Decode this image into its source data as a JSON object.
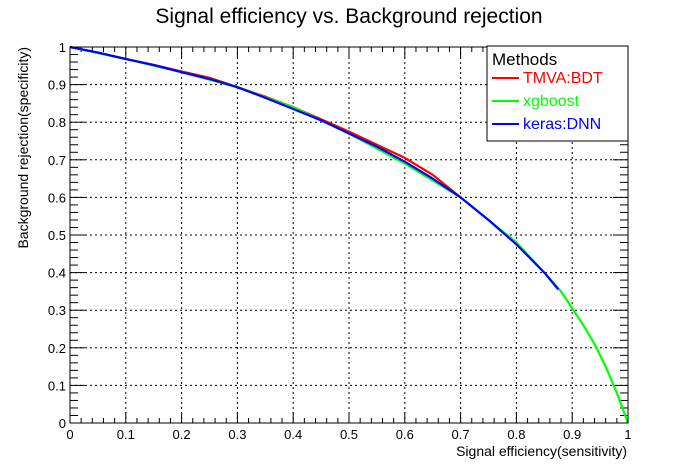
{
  "chart_data": {
    "type": "line",
    "title": "Signal efficiency vs. Background rejection",
    "xlabel": "Signal efficiency(sensitivity)",
    "ylabel": "Background rejection(specificity)",
    "xlim": [
      0,
      1
    ],
    "ylim": [
      0,
      1
    ],
    "xticks": [
      "0",
      "0.1",
      "0.2",
      "0.3",
      "0.4",
      "0.5",
      "0.6",
      "0.7",
      "0.8",
      "0.9",
      "1"
    ],
    "yticks": [
      "0",
      "0.1",
      "0.2",
      "0.3",
      "0.4",
      "0.5",
      "0.6",
      "0.7",
      "0.8",
      "0.9",
      "1"
    ],
    "grid": true,
    "legend": {
      "header": "Methods",
      "placement": "top-right"
    },
    "series": [
      {
        "name": "TMVA:BDT",
        "color": "#ff0000",
        "x": [
          0,
          0.05,
          0.1,
          0.15,
          0.2,
          0.25,
          0.3,
          0.35,
          0.4,
          0.45,
          0.5,
          0.55,
          0.6,
          0.65,
          0.7
        ],
        "y": [
          1.0,
          0.985,
          0.968,
          0.952,
          0.935,
          0.918,
          0.893,
          0.868,
          0.84,
          0.808,
          0.775,
          0.74,
          0.705,
          0.66,
          0.6
        ]
      },
      {
        "name": "xgboost",
        "color": "#00ff00",
        "x": [
          0,
          0.1,
          0.2,
          0.3,
          0.4,
          0.5,
          0.6,
          0.7,
          0.8,
          0.85,
          0.88,
          0.9,
          0.92,
          0.94,
          0.96,
          0.98,
          1.0
        ],
        "y": [
          1.0,
          0.968,
          0.933,
          0.893,
          0.84,
          0.77,
          0.69,
          0.6,
          0.48,
          0.4,
          0.35,
          0.305,
          0.26,
          0.21,
          0.15,
          0.08,
          0.0
        ]
      },
      {
        "name": "keras:DNN",
        "color": "#0000ff",
        "x": [
          0,
          0.05,
          0.1,
          0.15,
          0.2,
          0.25,
          0.3,
          0.35,
          0.4,
          0.45,
          0.5,
          0.55,
          0.6,
          0.65,
          0.7,
          0.75,
          0.8,
          0.85,
          0.875
        ],
        "y": [
          1.0,
          0.985,
          0.968,
          0.952,
          0.933,
          0.915,
          0.893,
          0.865,
          0.835,
          0.805,
          0.77,
          0.735,
          0.695,
          0.65,
          0.6,
          0.54,
          0.475,
          0.4,
          0.355
        ]
      }
    ]
  }
}
